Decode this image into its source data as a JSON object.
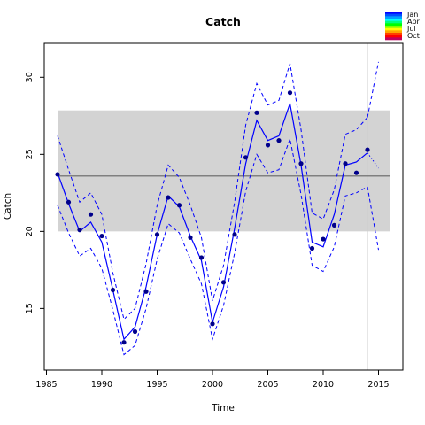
{
  "chart_data": {
    "type": "line",
    "title": "Catch",
    "xlabel": "Time",
    "ylabel": "Catch",
    "xlim": [
      1984.8,
      2017.2
    ],
    "ylim": [
      11.0,
      32.2
    ],
    "x_ticks": [
      1985,
      1990,
      1995,
      2000,
      2005,
      2010,
      2015
    ],
    "x_tick_labels": [
      "1985",
      "1990",
      "1995",
      "2000",
      "2005",
      "2010",
      "2015"
    ],
    "y_ticks": [
      15,
      20,
      25,
      30
    ],
    "y_tick_labels": [
      "15",
      "20",
      "25",
      "30"
    ],
    "grid": false,
    "band": {
      "x": [
        1986,
        2016
      ],
      "y": [
        20.0,
        27.85
      ],
      "color": "#d3d3d3"
    },
    "reference_line": {
      "y": 23.6,
      "x": [
        1986,
        2016
      ],
      "color": "#808080"
    },
    "vertical_marker": {
      "x": 2014,
      "color": "#cccccc"
    },
    "observed": {
      "color": "#00008b",
      "x": [
        1986,
        1987,
        1988,
        1989,
        1990,
        1991,
        1992,
        1993,
        1994,
        1995,
        1996,
        1997,
        1998,
        1999,
        2000,
        2001,
        2002,
        2003,
        2004,
        2005,
        2006,
        2007,
        2008,
        2009,
        2010,
        2011,
        2012,
        2013,
        2014
      ],
      "y": [
        23.7,
        21.9,
        20.1,
        21.1,
        19.7,
        16.2,
        12.8,
        13.5,
        16.1,
        19.8,
        22.2,
        21.7,
        19.6,
        18.3,
        14.0,
        16.7,
        19.8,
        24.8,
        27.7,
        25.6,
        25.9,
        29.0,
        24.4,
        18.9,
        19.5,
        20.4,
        24.4,
        23.8,
        25.3
      ]
    },
    "series": [
      {
        "line": "solid",
        "color": "#0000ff",
        "x": [
          1986,
          1987,
          1988,
          1989,
          1990,
          1991,
          1992,
          1993,
          1994,
          1995,
          1996,
          1997,
          1998,
          1999,
          2000,
          2001,
          2002,
          2003,
          2004,
          2005,
          2006,
          2007,
          2008,
          2009,
          2010,
          2011,
          2012,
          2013,
          2014
        ],
        "y": [
          23.8,
          21.8,
          20.0,
          20.6,
          19.3,
          16.2,
          13.0,
          13.8,
          16.4,
          19.8,
          22.3,
          21.6,
          19.7,
          18.1,
          14.1,
          16.4,
          20.2,
          24.4,
          27.2,
          25.9,
          26.2,
          28.3,
          24.3,
          19.3,
          19.0,
          21.1,
          24.3,
          24.5,
          25.1
        ]
      },
      {
        "line": "dashed",
        "color": "#0000ff",
        "x": [
          1986,
          1987,
          1988,
          1989,
          1990,
          1991,
          1992,
          1993,
          1994,
          1995,
          1996,
          1997,
          1998,
          1999,
          2000,
          2001,
          2002,
          2003,
          2004,
          2005,
          2006,
          2007,
          2008,
          2009,
          2010,
          2011,
          2012,
          2013,
          2014
        ],
        "y": [
          26.2,
          24.0,
          21.9,
          22.5,
          21.1,
          17.3,
          14.3,
          15.0,
          17.9,
          21.7,
          24.3,
          23.5,
          21.7,
          19.6,
          15.5,
          17.8,
          21.9,
          26.9,
          29.6,
          28.2,
          28.5,
          30.9,
          26.6,
          21.2,
          20.8,
          22.7,
          26.3,
          26.6,
          27.4
        ]
      },
      {
        "line": "dashed",
        "color": "#0000ff",
        "x": [
          1986,
          1987,
          1988,
          1989,
          1990,
          1991,
          1992,
          1993,
          1994,
          1995,
          1996,
          1997,
          1998,
          1999,
          2000,
          2001,
          2002,
          2003,
          2004,
          2005,
          2006,
          2007,
          2008,
          2009,
          2010,
          2011,
          2012,
          2013,
          2014
        ],
        "y": [
          21.7,
          19.9,
          18.4,
          18.9,
          17.6,
          14.9,
          12.0,
          12.6,
          15.0,
          18.2,
          20.5,
          19.9,
          18.2,
          16.6,
          13.0,
          15.2,
          18.6,
          22.6,
          25.0,
          23.8,
          24.0,
          26.0,
          22.4,
          17.8,
          17.4,
          19.0,
          22.3,
          22.5,
          22.9
        ]
      },
      {
        "line": "dashed",
        "color": "#0000ff",
        "x": [
          2014,
          2015,
          2016
        ],
        "y": [
          27.4,
          31.0,
          null
        ]
      },
      {
        "line": "dashed",
        "color": "#0000ff",
        "x": [
          2014,
          2015,
          2016
        ],
        "y": [
          22.9,
          18.8,
          null
        ]
      },
      {
        "line": "dotted",
        "color": "#0000ff",
        "x": [
          2014,
          2015
        ],
        "y": [
          25.1,
          24.1
        ]
      }
    ],
    "legend": {
      "position": "top-right",
      "labels": [
        "Jan",
        "Apr",
        "Jul",
        "Oct"
      ],
      "colors": [
        "#0000ff",
        "#0050ff",
        "#00a0ff",
        "#00ffff",
        "#00ff80",
        "#00ff00",
        "#80ff00",
        "#ffff00",
        "#ffa500",
        "#ff4000",
        "#ff0000",
        "#c00060"
      ]
    }
  }
}
